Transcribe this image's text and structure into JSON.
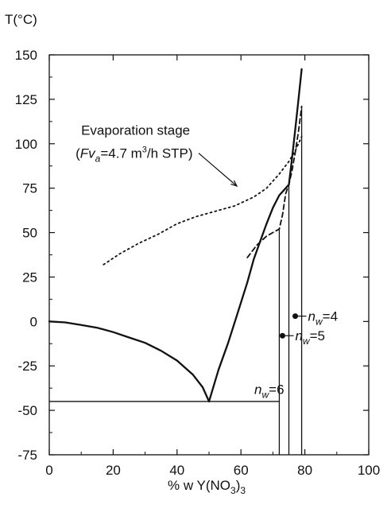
{
  "chart_data": {
    "type": "line",
    "title": "",
    "ylabel": "T(°C)",
    "xlabel": "% w Y(NO3)3",
    "xlabel_parts": {
      "pre": "% w Y(NO",
      "sub1": "3",
      "mid": ")",
      "sub2": "3"
    },
    "xlim": [
      0,
      100
    ],
    "ylim": [
      -75,
      150
    ],
    "xticks": [
      0,
      20,
      40,
      60,
      80,
      100
    ],
    "yticks": [
      -75,
      -50,
      -25,
      0,
      25,
      50,
      75,
      100,
      125,
      150
    ],
    "grid": false,
    "legend": "none",
    "series": [
      {
        "style": "solid",
        "points": [
          [
            0,
            0
          ],
          [
            5,
            -0.5
          ],
          [
            10,
            -2
          ],
          [
            15,
            -3.5
          ],
          [
            20,
            -6
          ],
          [
            25,
            -9
          ],
          [
            30,
            -12
          ],
          [
            35,
            -16.5
          ],
          [
            40,
            -22
          ],
          [
            45,
            -30
          ],
          [
            48,
            -37
          ],
          [
            50,
            -45
          ]
        ]
      },
      {
        "style": "solid",
        "points": [
          [
            50,
            -45
          ],
          [
            53,
            -27
          ],
          [
            56,
            -12
          ],
          [
            59,
            5
          ],
          [
            62,
            22
          ],
          [
            64,
            35
          ],
          [
            66,
            45
          ],
          [
            68,
            55
          ],
          [
            70,
            64
          ],
          [
            72,
            71
          ],
          [
            74,
            75
          ],
          [
            75,
            77
          ],
          [
            76,
            92
          ],
          [
            77,
            108
          ],
          [
            78,
            125
          ],
          [
            79,
            142
          ]
        ]
      },
      {
        "style": "dashed",
        "points": [
          [
            62,
            36
          ],
          [
            65,
            43
          ],
          [
            68,
            48
          ],
          [
            71,
            51
          ],
          [
            72,
            52
          ],
          [
            73,
            60
          ],
          [
            74,
            72
          ],
          [
            75,
            77
          ],
          [
            76,
            85
          ],
          [
            77,
            95
          ],
          [
            78,
            107
          ],
          [
            79,
            121
          ]
        ]
      },
      {
        "style": "dotted",
        "points": [
          [
            17,
            32
          ],
          [
            22,
            38
          ],
          [
            28,
            44
          ],
          [
            34,
            49
          ],
          [
            40,
            55
          ],
          [
            46,
            59
          ],
          [
            52,
            62
          ],
          [
            58,
            65
          ],
          [
            64,
            70
          ],
          [
            68,
            75
          ],
          [
            72,
            83
          ],
          [
            75,
            90
          ],
          [
            77,
            96
          ],
          [
            79,
            104
          ]
        ]
      }
    ],
    "isotherm": {
      "y": -45,
      "x_from": 0,
      "x_to": 72
    },
    "vertical_lines": [
      {
        "x": 72,
        "from_y": -75,
        "to_y": 52
      },
      {
        "x": 75,
        "from_y": -75,
        "to_y": 77
      },
      {
        "x": 79,
        "from_y": -75,
        "to_y": 121
      }
    ],
    "annotations": {
      "evaporation": {
        "line1": "Evaporation stage",
        "label_x": 5,
        "line1_y": 105,
        "line2_y": 92,
        "arrow_to": [
          73,
          78
        ]
      },
      "evaporation_line2_parts": {
        "open": "(",
        "F": "Fv",
        "sub_a": "a",
        "rest": "=4.7 m",
        "sup": "3",
        "end": "/h STP)"
      },
      "nw_labels": [
        {
          "n": "n",
          "sub": "w",
          "value": "=6",
          "x": 70,
          "y": -38,
          "dot": null
        },
        {
          "n": "n",
          "sub": "w",
          "value": "=5",
          "x": 73,
          "y": -8,
          "dot": [
            73,
            -8
          ]
        },
        {
          "n": "n",
          "sub": "w",
          "value": "=4",
          "x": 77,
          "y": 3,
          "dot": [
            77,
            3
          ]
        }
      ]
    }
  }
}
